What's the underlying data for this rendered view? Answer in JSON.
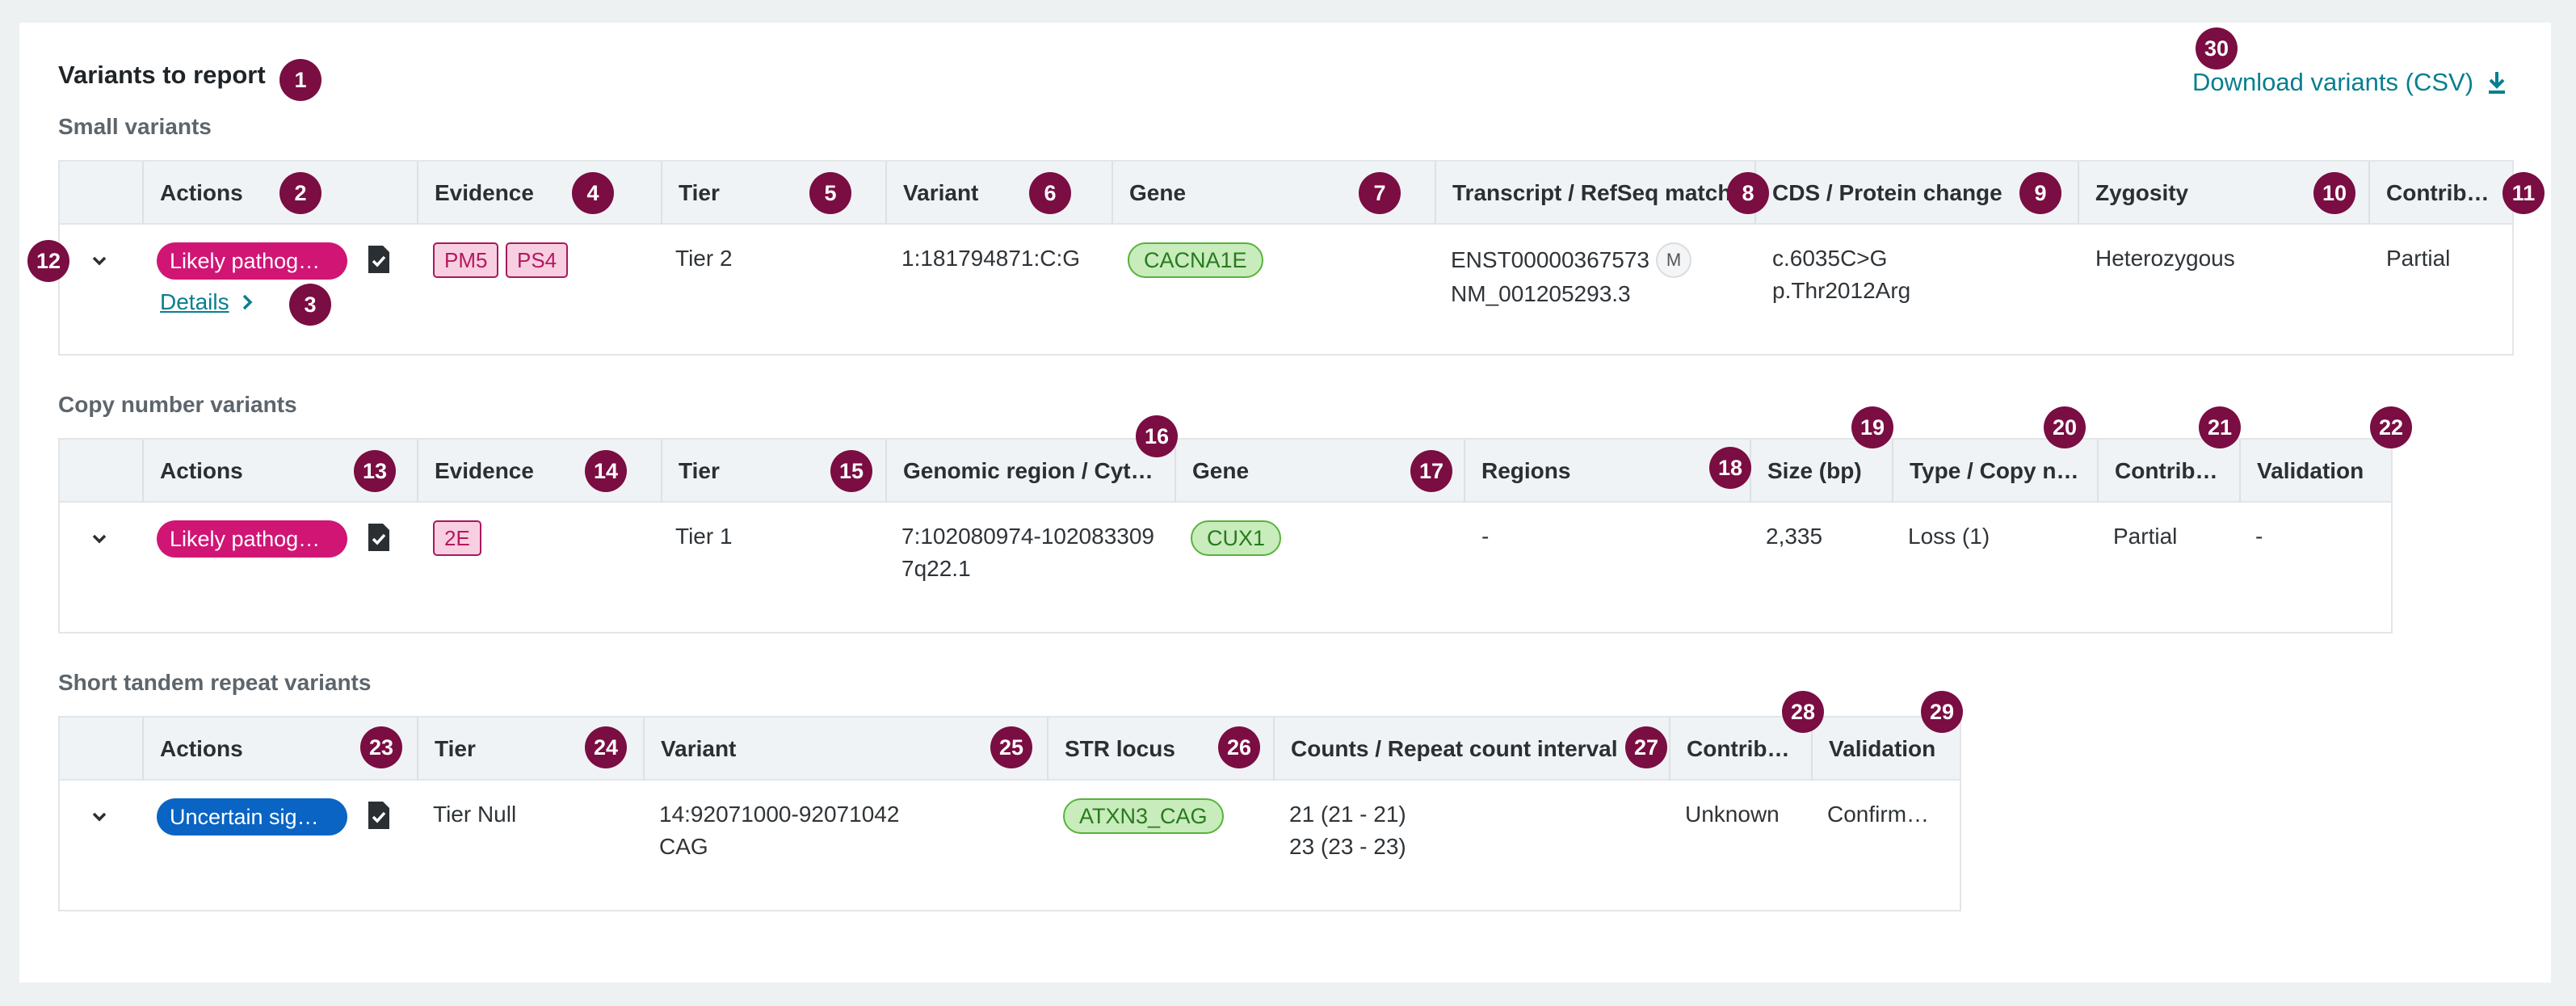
{
  "header": {
    "title": "Variants to report",
    "download_label": "Download variants (CSV)"
  },
  "small": {
    "section_title": "Small variants",
    "columns": [
      "Actions",
      "Evidence",
      "Tier",
      "Variant",
      "Gene",
      "Transcript / RefSeq match",
      "CDS / Protein change",
      "Zygosity",
      "Contrib…"
    ],
    "row": {
      "classification": "Likely pathog…",
      "details_label": "Details",
      "evidence": [
        "PM5",
        "PS4"
      ],
      "tier": "Tier 2",
      "variant": "1:181794871:C:G",
      "gene": "CACNA1E",
      "transcript": "ENST00000367573",
      "match_badge": "M",
      "refseq": "NM_001205293.3",
      "cds": "c.6035C>G",
      "protein": "p.Thr2012Arg",
      "zygosity": "Heterozygous",
      "contribution": "Partial"
    }
  },
  "cnv": {
    "section_title": "Copy number variants",
    "columns": [
      "Actions",
      "Evidence",
      "Tier",
      "Genomic region / Cyt…",
      "Gene",
      "Regions",
      "Size (bp)",
      "Type / Copy n…",
      "Contrib…",
      "Validation"
    ],
    "row": {
      "classification": "Likely pathog…",
      "evidence": [
        "2E"
      ],
      "tier": "Tier 1",
      "region": "7:102080974-102083309",
      "cytoband": "7q22.1",
      "gene": "CUX1",
      "regions": "-",
      "size": "2,335",
      "type": "Loss (1)",
      "contribution": "Partial",
      "validation": "-"
    }
  },
  "str": {
    "section_title": "Short tandem repeat variants",
    "columns": [
      "Actions",
      "Tier",
      "Variant",
      "STR locus",
      "Counts / Repeat count interval",
      "Contrib…",
      "Validation"
    ],
    "row": {
      "classification": "Uncertain sig…",
      "tier": "Tier Null",
      "variant": "14:92071000-92071042",
      "repeat": "CAG",
      "locus": "ATXN3_CAG",
      "count1": "21 (21 - 21)",
      "count2": "23 (23 - 23)",
      "contribution": "Unknown",
      "validation": "Confirm…"
    }
  },
  "badges": [
    "1",
    "2",
    "3",
    "4",
    "5",
    "6",
    "7",
    "8",
    "9",
    "10",
    "11",
    "12",
    "13",
    "14",
    "15",
    "16",
    "17",
    "18",
    "19",
    "20",
    "21",
    "22",
    "23",
    "24",
    "25",
    "26",
    "27",
    "28",
    "29",
    "30"
  ],
  "colors": {
    "likely_pathogenic": "#d11575",
    "uncertain_significance": "#0a64c4",
    "badge": "#7a0d42",
    "link": "#077f8f"
  }
}
